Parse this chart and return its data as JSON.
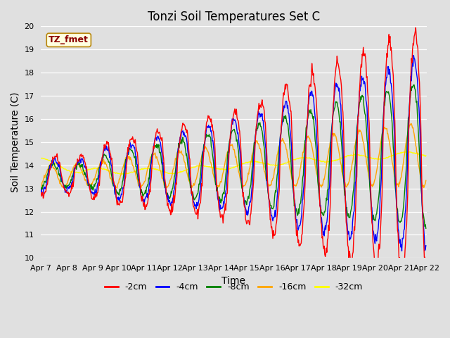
{
  "title": "Tonzi Soil Temperatures Set C",
  "xlabel": "Time",
  "ylabel": "Soil Temperature (C)",
  "ylim": [
    10.0,
    20.0
  ],
  "yticks": [
    10.0,
    11.0,
    12.0,
    13.0,
    14.0,
    15.0,
    16.0,
    17.0,
    18.0,
    19.0,
    20.0
  ],
  "xtick_labels": [
    "Apr 7",
    "Apr 8",
    "Apr 9",
    "Apr 10",
    "Apr 11",
    "Apr 12",
    "Apr 13",
    "Apr 14",
    "Apr 15",
    "Apr 16",
    "Apr 17",
    "Apr 18",
    "Apr 19",
    "Apr 20",
    "Apr 21",
    "Apr 22"
  ],
  "series_colors": [
    "red",
    "blue",
    "green",
    "orange",
    "yellow"
  ],
  "series_labels": [
    "-2cm",
    "-4cm",
    "-8cm",
    "-16cm",
    "-32cm"
  ],
  "annotation_text": "TZ_fmet",
  "background_color": "#e0e0e0",
  "axes_facecolor": "#e0e0e0",
  "title_fontsize": 12,
  "label_fontsize": 10,
  "tick_fontsize": 8
}
